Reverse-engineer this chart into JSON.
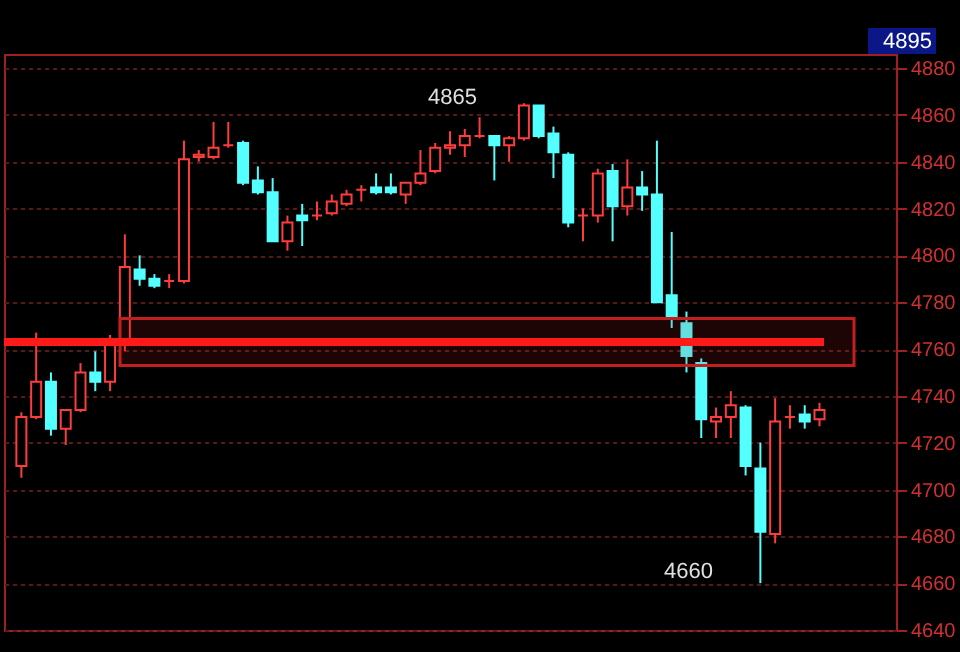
{
  "chart_data": {
    "type": "candlestick",
    "categories": [
      null,
      null,
      null,
      null,
      null,
      null,
      null,
      null,
      null,
      null,
      null,
      null,
      null,
      null,
      null,
      null,
      null,
      null,
      null,
      null,
      null,
      null,
      null,
      null,
      null,
      null,
      null,
      null,
      null,
      null,
      null,
      null,
      null,
      null,
      null,
      null,
      null,
      null,
      null,
      null,
      null,
      null,
      null,
      null,
      null,
      null,
      null,
      null,
      null,
      null,
      null,
      null,
      null,
      null,
      null,
      null,
      null,
      null,
      null
    ],
    "ohlc": [
      [
        4710,
        4733,
        4705,
        4731
      ],
      [
        4731,
        4767,
        4730,
        4746
      ],
      [
        4746,
        4750,
        4723,
        4726
      ],
      [
        4726,
        4734,
        4719,
        4734
      ],
      [
        4734,
        4754,
        4733,
        4750
      ],
      [
        4750,
        4759,
        4742,
        4746
      ],
      [
        4746,
        4766,
        4742,
        4762
      ],
      [
        4764,
        4809,
        4759,
        4795
      ],
      [
        4794,
        4800,
        4787,
        4790
      ],
      [
        4790,
        4792,
        4786,
        4787
      ],
      [
        4789,
        4792,
        4786,
        4789
      ],
      [
        4789,
        4849,
        4788,
        4841
      ],
      [
        4842,
        4845,
        4840,
        4843
      ],
      [
        4842,
        4857,
        4841,
        4846
      ],
      [
        4847,
        4857,
        4846,
        4847
      ],
      [
        4848,
        4849,
        4830,
        4831
      ],
      [
        4832,
        4838,
        4826,
        4827
      ],
      [
        4827,
        4833,
        4806,
        4806
      ],
      [
        4806,
        4817,
        4802,
        4814
      ],
      [
        4817,
        4822,
        4804,
        4815
      ],
      [
        4817,
        4823,
        4815,
        4817
      ],
      [
        4818,
        4826,
        4817,
        4823
      ],
      [
        4822,
        4828,
        4821,
        4826
      ],
      [
        4828,
        4830,
        4823,
        4828
      ],
      [
        4829,
        4835,
        4826,
        4827
      ],
      [
        4829,
        4835,
        4826,
        4827
      ],
      [
        4826,
        4831,
        4822,
        4831
      ],
      [
        4831,
        4845,
        4830,
        4835
      ],
      [
        4836,
        4848,
        4835,
        4846
      ],
      [
        4846,
        4853,
        4843,
        4847
      ],
      [
        4847,
        4854,
        4842,
        4851
      ],
      [
        4851,
        4859,
        4850,
        4851
      ],
      [
        4851,
        4851,
        4832,
        4847
      ],
      [
        4847,
        4851,
        4840,
        4850
      ],
      [
        4850,
        4865,
        4849,
        4864
      ],
      [
        4864,
        4864,
        4850,
        4851
      ],
      [
        4852,
        4855,
        4833,
        4844
      ],
      [
        4843,
        4844,
        4812,
        4814
      ],
      [
        4817,
        4820,
        4806,
        4817
      ],
      [
        4817,
        4837,
        4814,
        4835
      ],
      [
        4836,
        4839,
        4806,
        4821
      ],
      [
        4821,
        4841,
        4817,
        4829
      ],
      [
        4829,
        4836,
        4819,
        4826
      ],
      [
        4826,
        4849,
        4780,
        4780
      ],
      [
        4783,
        4810,
        4769,
        4773
      ],
      [
        4771,
        4776,
        4750,
        4757
      ],
      [
        4754,
        4756,
        4722,
        4730
      ],
      [
        4729,
        4735,
        4722,
        4731
      ],
      [
        4731,
        4742,
        4722,
        4736
      ],
      [
        4735,
        4736,
        4706,
        4710
      ],
      [
        4709,
        4720,
        4660,
        4682
      ],
      [
        4681,
        4739,
        4677,
        4729
      ],
      [
        4731,
        4736,
        4726,
        4731
      ],
      [
        4732,
        4736,
        4726,
        4729
      ],
      [
        4730,
        4737,
        4727,
        4734
      ],
      null,
      null,
      null,
      null
    ],
    "ylim": [
      4640,
      4886
    ],
    "yticks": [
      4640,
      4660,
      4680,
      4700,
      4720,
      4740,
      4760,
      4780,
      4800,
      4820,
      4840,
      4860,
      4880
    ],
    "grid": "y",
    "tick_labels": "y",
    "bands": [
      {
        "axis": "y",
        "from": 4753,
        "to": 4773,
        "color": "#c02020"
      }
    ],
    "ref_lines": [
      {
        "axis": "y",
        "value": 4763,
        "color": "#ff1a1a"
      }
    ],
    "annotations": [
      "4865",
      "4660",
      "4895"
    ]
  }
}
